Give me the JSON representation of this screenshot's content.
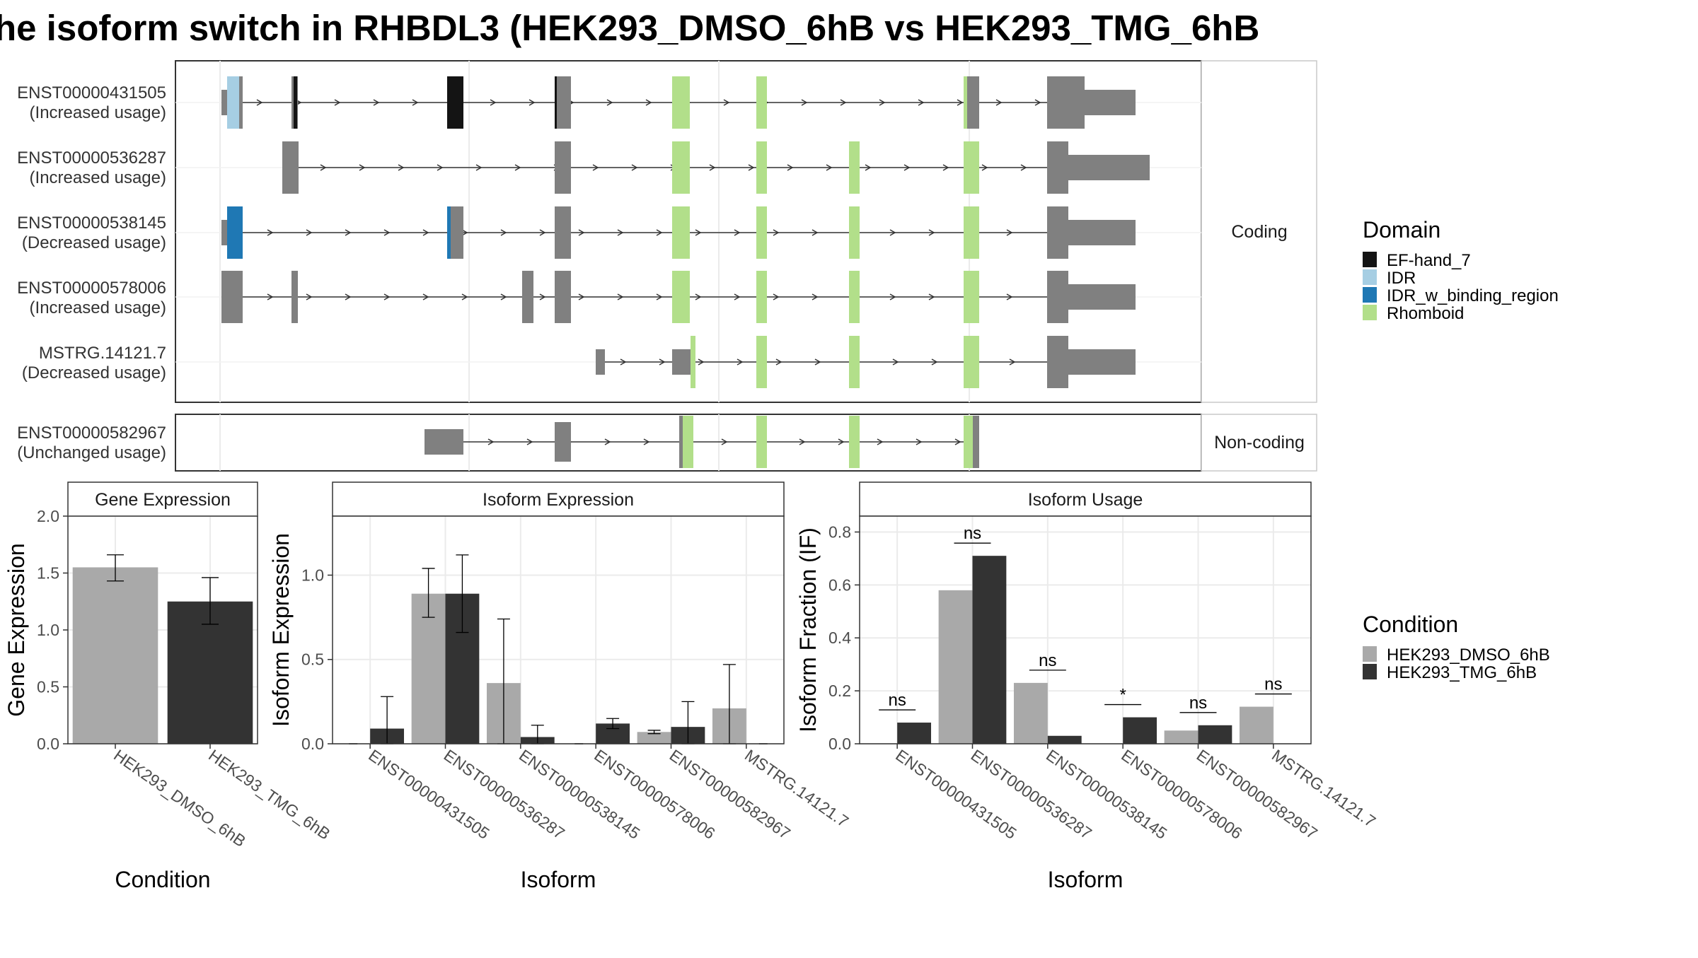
{
  "title": "he isoform switch in RHBDL3 (HEK293_DMSO_6hB vs HEK293_TMG_6hB",
  "colors": {
    "exon": "#808080",
    "ef_hand": "#141414",
    "idr": "#a6cee3",
    "idr_binding": "#1f78b4",
    "rhomboid": "#b2df8a",
    "dmso": "#a9a9a9",
    "tmg": "#333333"
  },
  "structure": {
    "coding_strip": "Coding",
    "noncoding_strip": "Non-coding",
    "transcripts": [
      {
        "id": "ENST00000431505",
        "usage": "(Increased usage)"
      },
      {
        "id": "ENST00000536287",
        "usage": "(Increased usage)"
      },
      {
        "id": "ENST00000538145",
        "usage": "(Decreased usage)"
      },
      {
        "id": "ENST00000578006",
        "usage": "(Increased usage)"
      },
      {
        "id": "MSTRG.14121.7",
        "usage": "(Decreased usage)"
      },
      {
        "id": "ENST00000582967",
        "usage": "(Unchanged usage)"
      }
    ]
  },
  "legend_domain": {
    "title": "Domain",
    "items": [
      {
        "label": "EF-hand_7",
        "color": "#141414"
      },
      {
        "label": "IDR",
        "color": "#a6cee3"
      },
      {
        "label": "IDR_w_binding_region",
        "color": "#1f78b4"
      },
      {
        "label": "Rhomboid",
        "color": "#b2df8a"
      }
    ]
  },
  "legend_condition": {
    "title": "Condition",
    "items": [
      {
        "label": "HEK293_DMSO_6hB",
        "color": "#a9a9a9"
      },
      {
        "label": "HEK293_TMG_6hB",
        "color": "#333333"
      }
    ]
  },
  "chart_data": [
    {
      "type": "bar",
      "title": "Gene Expression",
      "xlabel": "Condition",
      "ylabel": "Gene Expression",
      "ylim": [
        0,
        2.0
      ],
      "yticks": [
        "0.0",
        "0.5",
        "1.0",
        "1.5",
        "2.0"
      ],
      "categories": [
        "HEK293_DMSO_6hB",
        "HEK293_TMG_6hB"
      ],
      "values": [
        1.55,
        1.25
      ],
      "errors": [
        [
          1.43,
          1.66
        ],
        [
          1.05,
          1.46
        ]
      ]
    },
    {
      "type": "bar",
      "title": "Isoform Expression",
      "xlabel": "Isoform",
      "ylabel": "Isoform Expression",
      "ylim": [
        0,
        1.35
      ],
      "yticks": [
        "0.0",
        "0.5",
        "1.0"
      ],
      "categories": [
        "ENST00000431505",
        "ENST00000536287",
        "ENST00000538145",
        "ENST00000578006",
        "ENST00000582967",
        "MSTRG.14121.7"
      ],
      "series": [
        {
          "name": "HEK293_DMSO_6hB",
          "values": [
            0.0,
            0.89,
            0.36,
            0.0,
            0.07,
            0.21
          ],
          "errors": [
            [
              0.0,
              0.0
            ],
            [
              0.75,
              1.04
            ],
            [
              0.0,
              0.74
            ],
            [
              0.0,
              0.0
            ],
            [
              0.06,
              0.08
            ],
            [
              0.0,
              0.47
            ]
          ]
        },
        {
          "name": "HEK293_TMG_6hB",
          "values": [
            0.09,
            0.89,
            0.04,
            0.12,
            0.1,
            0.0
          ],
          "errors": [
            [
              0.0,
              0.28
            ],
            [
              0.66,
              1.12
            ],
            [
              0.0,
              0.11
            ],
            [
              0.09,
              0.15
            ],
            [
              0.0,
              0.25
            ],
            [
              0.0,
              0.0
            ]
          ]
        }
      ]
    },
    {
      "type": "bar",
      "title": "Isoform Usage",
      "xlabel": "Isoform",
      "ylabel": "Isoform Fraction (IF)",
      "ylim": [
        0,
        0.86
      ],
      "yticks": [
        "0.0",
        "0.2",
        "0.4",
        "0.6",
        "0.8"
      ],
      "categories": [
        "ENST00000431505",
        "ENST00000536287",
        "ENST00000538145",
        "ENST00000578006",
        "ENST00000582967",
        "MSTRG.14121.7"
      ],
      "series": [
        {
          "name": "HEK293_DMSO_6hB",
          "values": [
            0.0,
            0.58,
            0.23,
            0.0,
            0.05,
            0.14
          ]
        },
        {
          "name": "HEK293_TMG_6hB",
          "values": [
            0.08,
            0.71,
            0.03,
            0.1,
            0.07,
            0.0
          ]
        }
      ],
      "significance": [
        "ns",
        "ns",
        "ns",
        "*",
        "ns",
        "ns"
      ]
    }
  ]
}
